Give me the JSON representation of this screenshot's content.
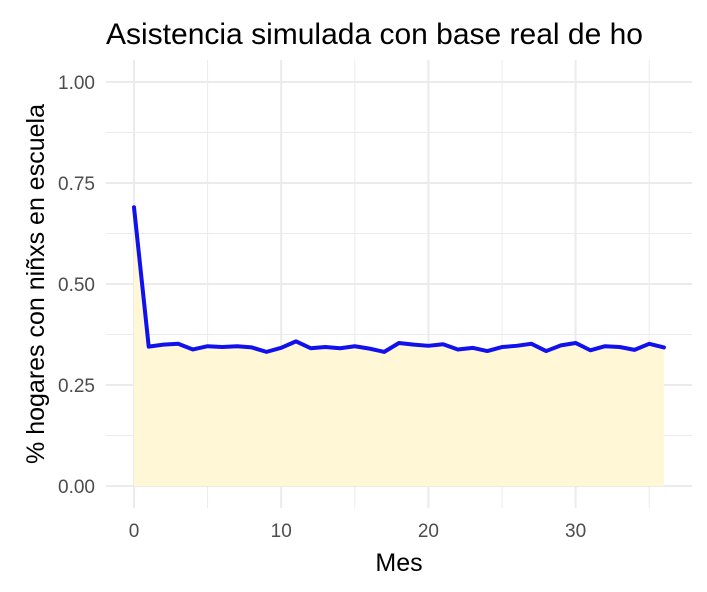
{
  "chart_data": {
    "type": "area",
    "title": "Asistencia simulada con base real de ho",
    "xlabel": "Mes",
    "ylabel": "% hogares con niñxs en escuela",
    "xlim": [
      0,
      36
    ],
    "ylim": [
      0,
      1
    ],
    "x_ticks": [
      0,
      10,
      20,
      30
    ],
    "x_tick_labels": [
      "0",
      "10",
      "20",
      "30"
    ],
    "y_ticks": [
      0,
      0.25,
      0.5,
      0.75,
      1
    ],
    "y_tick_labels": [
      "0.00",
      "0.25",
      "0.50",
      "0.75",
      "1.00"
    ],
    "grid": true,
    "legend": "none",
    "series": [
      {
        "x": [
          0,
          1,
          2,
          3,
          4,
          5,
          6,
          7,
          8,
          9,
          10,
          11,
          12,
          13,
          14,
          15,
          16,
          17,
          18,
          19,
          20,
          21,
          22,
          23,
          24,
          25,
          26,
          27,
          28,
          29,
          30,
          31,
          32,
          33,
          34,
          35,
          36
        ],
        "values": [
          0.69,
          0.345,
          0.35,
          0.352,
          0.338,
          0.346,
          0.344,
          0.346,
          0.343,
          0.332,
          0.342,
          0.358,
          0.341,
          0.344,
          0.341,
          0.346,
          0.34,
          0.332,
          0.354,
          0.35,
          0.347,
          0.351,
          0.338,
          0.342,
          0.334,
          0.344,
          0.347,
          0.352,
          0.334,
          0.348,
          0.354,
          0.336,
          0.346,
          0.344,
          0.337,
          0.352,
          0.343
        ]
      }
    ],
    "colors": {
      "line": "#1111ee",
      "fill": "#fff7d6",
      "grid": "#ebebeb"
    }
  }
}
